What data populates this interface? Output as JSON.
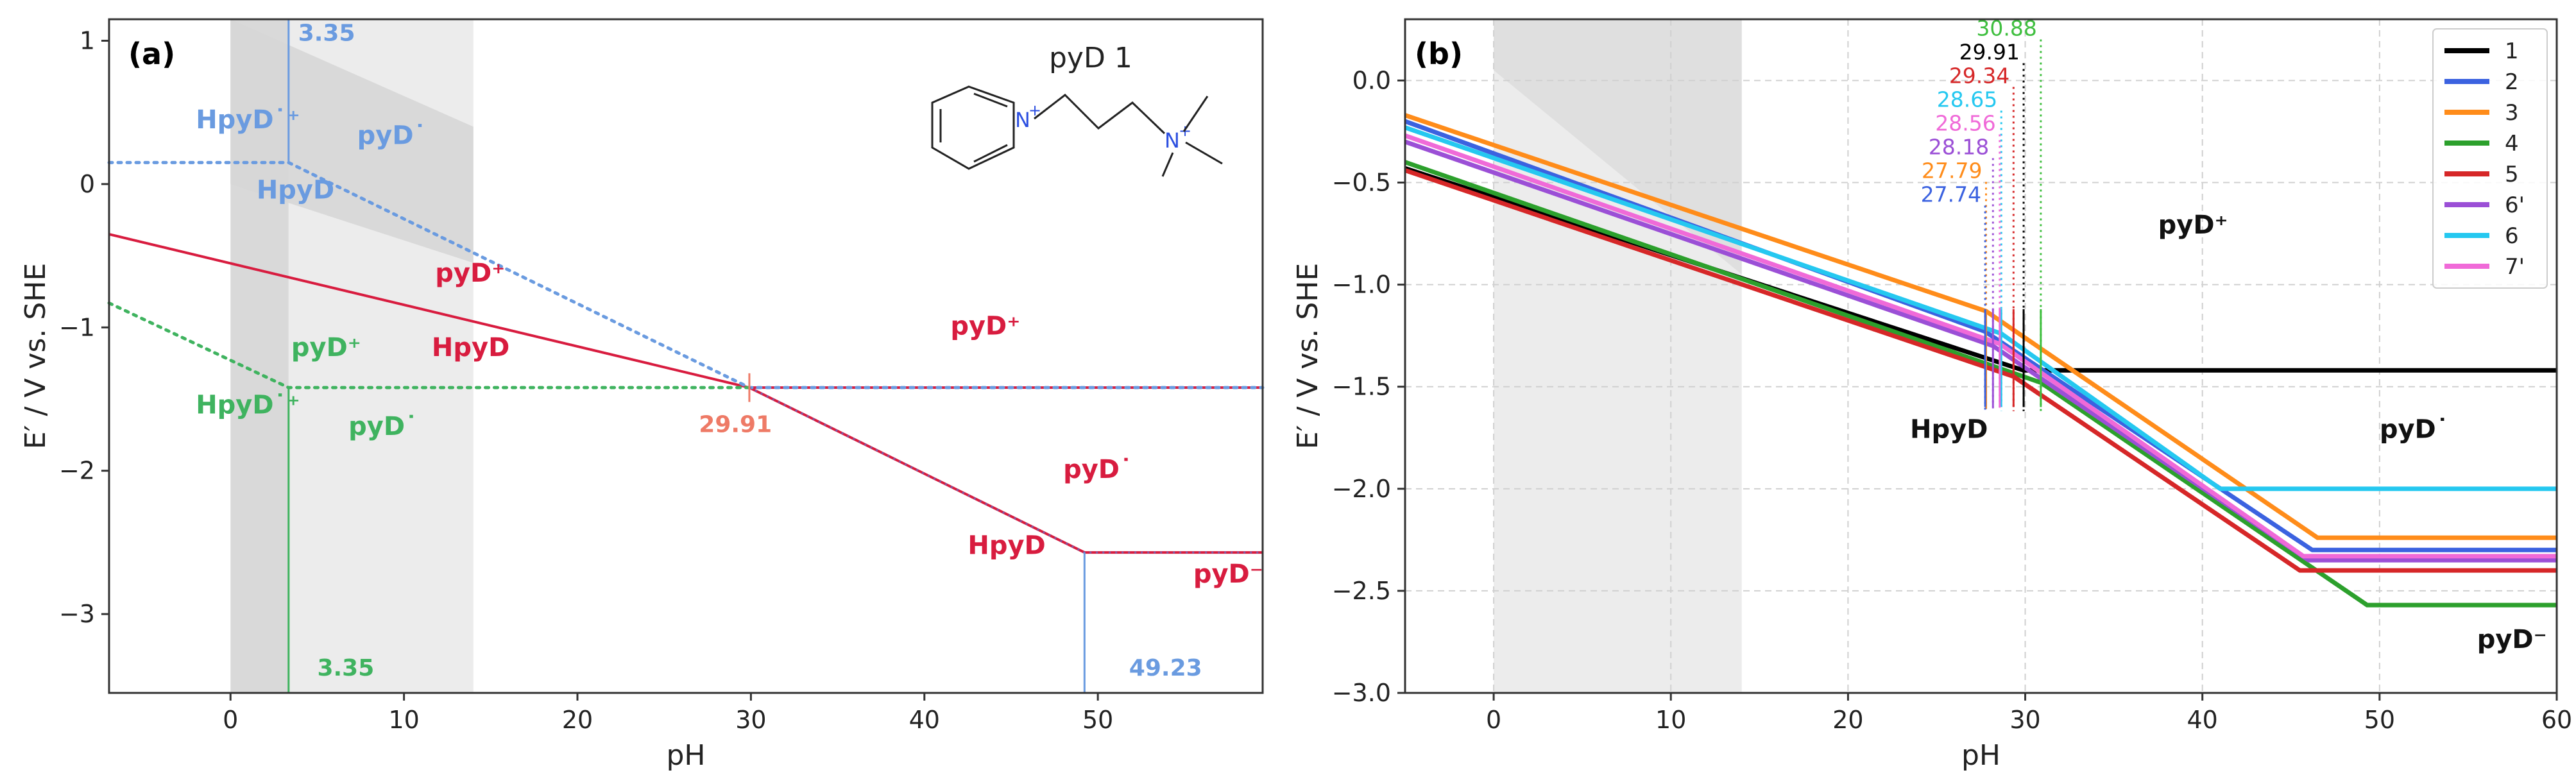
{
  "colors": {
    "blue": "#6a9be0",
    "red": "#d81c3f",
    "green": "#3fb35f",
    "salmon": "#ee7a66",
    "axis": "#333333",
    "grid": "#d0d0d0",
    "band_light": "#ececec",
    "band_dark": "#d9d9d9"
  },
  "chart_data": [
    {
      "panel": "(a)",
      "type": "line",
      "xlabel": "pH",
      "ylabel": "E′ / V vs. SHE",
      "xlim": [
        -7,
        59.5
      ],
      "ylim": [
        -3.55,
        1.15
      ],
      "xticks": [
        0,
        10,
        20,
        30,
        40,
        50
      ],
      "yticks": [
        -3,
        -2,
        -1,
        0,
        1
      ],
      "grid": false,
      "molecule_label": "pyD 1",
      "molecule_charges": [
        "+",
        "+"
      ],
      "shaded_regions": [
        {
          "x": [
            0,
            3.35
          ],
          "shade": "dark"
        },
        {
          "x": [
            3.35,
            14
          ],
          "shade": "light"
        }
      ],
      "series": [
        {
          "name": "red solid",
          "color": "red",
          "style": "solid",
          "points": [
            [
              -7,
              -0.35
            ],
            [
              29.91,
              -1.42
            ],
            [
              59.5,
              -1.42
            ]
          ]
        },
        {
          "name": "red lower solid",
          "color": "red",
          "style": "solid",
          "points": [
            [
              29.91,
              -1.42
            ],
            [
              49.23,
              -2.57
            ],
            [
              59.5,
              -2.57
            ]
          ]
        },
        {
          "name": "blue dotted",
          "color": "blue",
          "style": "dotted",
          "points": [
            [
              -7,
              0.15
            ],
            [
              3.35,
              0.15
            ],
            [
              29.91,
              -1.42
            ],
            [
              59.5,
              -1.42
            ]
          ]
        },
        {
          "name": "green dotted",
          "color": "green",
          "style": "dotted",
          "points": [
            [
              -7,
              -0.83
            ],
            [
              3.35,
              -1.42
            ],
            [
              29.91,
              -1.42
            ]
          ]
        },
        {
          "name": "red dashed lower",
          "color": "red",
          "style": "dashed",
          "points": [
            [
              29.91,
              -1.42
            ],
            [
              49.23,
              -2.57
            ],
            [
              59.5,
              -2.57
            ]
          ]
        }
      ],
      "vlines": [
        {
          "x": 3.35,
          "y": [
            0.15,
            1.15
          ],
          "color": "blue"
        },
        {
          "x": 3.35,
          "y": [
            -3.55,
            -1.42
          ],
          "color": "green"
        },
        {
          "x": 49.23,
          "y": [
            -3.55,
            -2.57
          ],
          "color": "blue"
        }
      ],
      "annotations": [
        {
          "text": "3.35",
          "x": 3.9,
          "y": 1.0,
          "color": "blue"
        },
        {
          "text": "HpyD˙⁺",
          "x": -2.0,
          "y": 0.39,
          "color": "blue"
        },
        {
          "text": "pyD˙",
          "x": 7.3,
          "y": 0.28,
          "color": "blue"
        },
        {
          "text": "HpyD",
          "x": 1.5,
          "y": -0.1,
          "color": "blue"
        },
        {
          "text": "pyD⁺",
          "x": 11.8,
          "y": -0.68,
          "color": "red"
        },
        {
          "text": "HpyD",
          "x": 11.6,
          "y": -1.2,
          "color": "red"
        },
        {
          "text": "pyD⁺",
          "x": 41.5,
          "y": -1.05,
          "color": "red"
        },
        {
          "text": "pyD⁺",
          "x": 3.5,
          "y": -1.2,
          "color": "green"
        },
        {
          "text": "HpyD˙⁺",
          "x": -2.0,
          "y": -1.6,
          "color": "green"
        },
        {
          "text": "pyD˙",
          "x": 6.8,
          "y": -1.75,
          "color": "green"
        },
        {
          "text": "29.91",
          "x": 27.0,
          "y": -1.73,
          "color": "salmon"
        },
        {
          "text": "pyD˙",
          "x": 48.0,
          "y": -2.05,
          "color": "red"
        },
        {
          "text": "HpyD",
          "x": 42.5,
          "y": -2.58,
          "color": "red"
        },
        {
          "text": "pyD⁻",
          "x": 55.5,
          "y": -2.78,
          "color": "red"
        },
        {
          "text": "3.35",
          "x": 5.0,
          "y": -3.43,
          "color": "green"
        },
        {
          "text": "49.23",
          "x": 51.8,
          "y": -3.43,
          "color": "blue"
        }
      ]
    },
    {
      "panel": "(b)",
      "type": "line",
      "xlabel": "pH",
      "ylabel": "E′ / V vs. SHE",
      "xlim": [
        -5,
        60
      ],
      "ylim": [
        -3.0,
        0.3
      ],
      "xticks": [
        0,
        10,
        20,
        30,
        40,
        50,
        60
      ],
      "yticks": [
        0.0,
        -0.5,
        -1.0,
        -1.5,
        -2.0,
        -2.5,
        -3.0
      ],
      "grid": true,
      "legend_position": "top-right",
      "shaded_regions": [
        {
          "x": [
            0,
            14
          ],
          "shade": "light"
        }
      ],
      "series": [
        {
          "name": "1",
          "color": "#000000",
          "points": [
            [
              -5,
              -0.43
            ],
            [
              29.91,
              -1.42
            ],
            [
              60,
              -1.42
            ]
          ]
        },
        {
          "name": "2",
          "color": "#3b62e0",
          "points": [
            [
              -5,
              -0.2
            ],
            [
              27.74,
              -1.23
            ],
            [
              46.2,
              -2.3
            ],
            [
              60,
              -2.3
            ]
          ]
        },
        {
          "name": "3",
          "color": "#ff8c1a",
          "points": [
            [
              -5,
              -0.17
            ],
            [
              27.79,
              -1.13
            ],
            [
              46.5,
              -2.24
            ],
            [
              60,
              -2.24
            ]
          ]
        },
        {
          "name": "4",
          "color": "#2ca02c",
          "points": [
            [
              -5,
              -0.4
            ],
            [
              30.88,
              -1.48
            ],
            [
              49.3,
              -2.57
            ],
            [
              60,
              -2.57
            ]
          ]
        },
        {
          "name": "5",
          "color": "#d62728",
          "points": [
            [
              -5,
              -0.44
            ],
            [
              29.34,
              -1.45
            ],
            [
              45.5,
              -2.4
            ],
            [
              60,
              -2.4
            ]
          ]
        },
        {
          "name": "6'",
          "color": "#9b4fd6",
          "points": [
            [
              -5,
              -0.3
            ],
            [
              28.18,
              -1.3
            ],
            [
              46.0,
              -2.35
            ],
            [
              60,
              -2.35
            ]
          ]
        },
        {
          "name": "6",
          "color": "#25c8f0",
          "points": [
            [
              -5,
              -0.23
            ],
            [
              28.65,
              -1.24
            ],
            [
              41.0,
              -2.0
            ],
            [
              60,
              -2.0
            ]
          ]
        },
        {
          "name": "7'",
          "color": "#f06ad8",
          "points": [
            [
              -5,
              -0.27
            ],
            [
              28.56,
              -1.29
            ],
            [
              45.7,
              -2.33
            ],
            [
              60,
              -2.33
            ]
          ]
        }
      ],
      "pKa_markers": [
        {
          "text": "30.88",
          "x": 30.88,
          "color": "#3fbf3f"
        },
        {
          "text": "29.91",
          "x": 29.91,
          "color": "#000000"
        },
        {
          "text": "29.34",
          "x": 29.34,
          "color": "#d62728"
        },
        {
          "text": "28.65",
          "x": 28.65,
          "color": "#25c8f0"
        },
        {
          "text": "28.56",
          "x": 28.56,
          "color": "#f06ad8"
        },
        {
          "text": "28.18",
          "x": 28.18,
          "color": "#9b4fd6"
        },
        {
          "text": "27.79",
          "x": 27.79,
          "color": "#ff8c1a"
        },
        {
          "text": "27.74",
          "x": 27.74,
          "color": "#3b62e0"
        }
      ],
      "annotations": [
        {
          "text": "pyD⁺",
          "x": 37.5,
          "y": -0.75
        },
        {
          "text": "HpyD",
          "x": 23.5,
          "y": -1.75
        },
        {
          "text": "pyD˙",
          "x": 50.0,
          "y": -1.75
        },
        {
          "text": "pyD⁻",
          "x": 55.5,
          "y": -2.78
        }
      ]
    }
  ]
}
